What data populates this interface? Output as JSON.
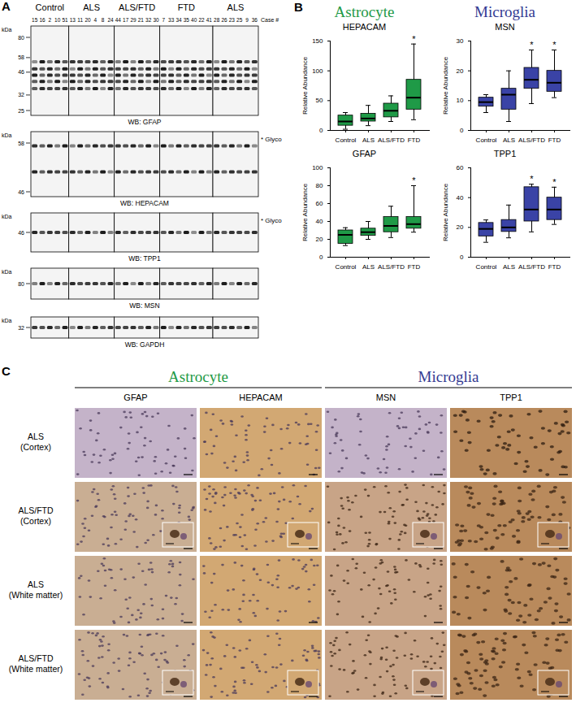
{
  "panel_labels": [
    "A",
    "B",
    "C"
  ],
  "cell_groups": [
    {
      "name": "Astrocyte",
      "color": "#1f9a47"
    },
    {
      "name": "Microglia",
      "color": "#333a92"
    }
  ],
  "blot": {
    "case_label": "Case #",
    "unit": "kDa",
    "glyco_label": "* Glyco",
    "groups": [
      {
        "name": "Control",
        "cases": [
          15,
          16,
          2,
          10,
          51
        ]
      },
      {
        "name": "ALS",
        "cases": [
          13,
          11,
          20,
          4,
          8,
          24
        ]
      },
      {
        "name": "ALS/FTD",
        "cases": [
          44,
          17,
          29,
          21,
          32,
          30
        ]
      },
      {
        "name": "FTD",
        "cases": [
          7,
          33,
          34,
          35,
          40,
          22,
          41
        ]
      },
      {
        "name": "ALS",
        "cases": [
          28,
          26,
          23,
          25,
          9,
          36
        ]
      }
    ],
    "blots": [
      {
        "label": "WB: GFAP",
        "markers": [
          80,
          58,
          46,
          32,
          25
        ],
        "glyco": false
      },
      {
        "label": "WB: HEPACAM",
        "markers": [
          58,
          46
        ],
        "glyco": true
      },
      {
        "label": "WB: TPP1",
        "markers": [
          46
        ],
        "glyco": true
      },
      {
        "label": "WB: MSN",
        "markers": [
          80
        ],
        "glyco": false
      },
      {
        "label": "WB: GAPDH",
        "markers": [
          32
        ],
        "glyco": false
      }
    ]
  },
  "chart_data": [
    {
      "type": "box",
      "group": "Astrocyte",
      "title": "HEPACAM",
      "y_label": "Relative Abundance",
      "categories": [
        "Control",
        "ALS",
        "ALS/FTD",
        "FTD"
      ],
      "min": [
        2,
        8,
        15,
        18
      ],
      "q1": [
        8,
        15,
        22,
        35
      ],
      "median": [
        15,
        20,
        33,
        55
      ],
      "q3": [
        25,
        28,
        45,
        85
      ],
      "max": [
        30,
        42,
        58,
        145
      ],
      "significant": [
        false,
        false,
        false,
        true
      ],
      "significance_label": "*",
      "color": "#1f9a47",
      "ylim": [
        0,
        150
      ],
      "yticks": [
        0,
        50,
        100,
        150
      ]
    },
    {
      "type": "box",
      "group": "Microglia",
      "title": "MSN",
      "y_label": "Relative Abundance",
      "categories": [
        "Control",
        "ALS",
        "ALS/FTD",
        "FTD"
      ],
      "min": [
        6,
        3,
        9,
        11
      ],
      "q1": [
        8,
        7,
        14,
        13
      ],
      "median": [
        9.5,
        12,
        17,
        16
      ],
      "q3": [
        11,
        14,
        21,
        20
      ],
      "max": [
        12,
        20,
        27,
        27
      ],
      "significant": [
        false,
        false,
        true,
        true
      ],
      "significance_label": "*",
      "color": "#3a43a6",
      "ylim": [
        0,
        30
      ],
      "yticks": [
        0,
        10,
        20,
        30
      ]
    },
    {
      "type": "box",
      "group": "Astrocyte",
      "title": "GFAP",
      "y_label": "Relative Abundance",
      "categories": [
        "Control",
        "ALS",
        "ALS/FTD",
        "FTD"
      ],
      "min": [
        13,
        20,
        22,
        28
      ],
      "q1": [
        15,
        24,
        28,
        32
      ],
      "median": [
        25,
        28,
        35,
        37
      ],
      "q3": [
        30,
        32,
        45,
        45
      ],
      "max": [
        33,
        40,
        57,
        80
      ],
      "significant": [
        false,
        false,
        false,
        true
      ],
      "significance_label": "*",
      "color": "#1f9a47",
      "ylim": [
        0,
        100
      ],
      "yticks": [
        0,
        20,
        40,
        60,
        80,
        100
      ]
    },
    {
      "type": "box",
      "group": "Microglia",
      "title": "TPP1",
      "y_label": "Relative Abundance",
      "categories": [
        "Control",
        "ALS",
        "ALS/FTD",
        "FTD"
      ],
      "min": [
        10,
        13,
        17,
        22
      ],
      "q1": [
        14,
        17,
        24,
        25
      ],
      "median": [
        19,
        20,
        32,
        32
      ],
      "q3": [
        23,
        25,
        47,
        40
      ],
      "max": [
        25,
        35,
        49,
        47
      ],
      "significant": [
        false,
        false,
        true,
        true
      ],
      "significance_label": "*",
      "color": "#3a43a6",
      "ylim": [
        0,
        60
      ],
      "yticks": [
        0,
        20,
        40,
        60
      ]
    }
  ],
  "histology": {
    "columns": [
      {
        "group": "Astrocyte",
        "markers": [
          "GFAP",
          "HEPACAM"
        ]
      },
      {
        "group": "Microglia",
        "markers": [
          "MSN",
          "TPP1"
        ]
      }
    ],
    "rows": [
      {
        "label": [
          "ALS",
          "(Cortex)"
        ],
        "insets": false
      },
      {
        "label": [
          "ALS/FTD",
          "(Cortex)"
        ],
        "insets": true
      },
      {
        "label": [
          "ALS",
          "(White matter)"
        ],
        "insets": false
      },
      {
        "label": [
          "ALS/FTD",
          "(White matter)"
        ],
        "insets": true
      }
    ]
  }
}
